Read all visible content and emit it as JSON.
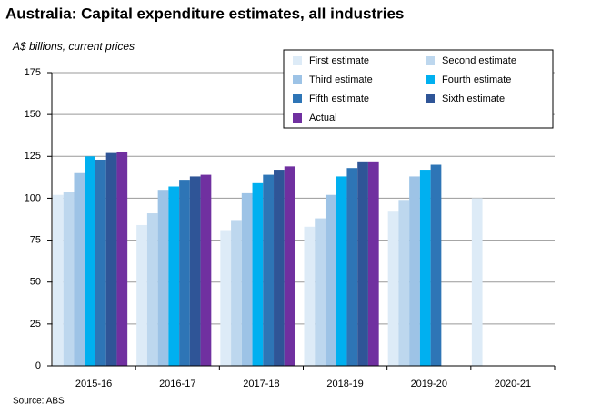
{
  "chart_data": {
    "type": "bar",
    "title": "Australia: Capital expenditure estimates, all industries",
    "subtitle": "A$ billions, current prices",
    "source": "Source: ABS",
    "categories": [
      "2015-16",
      "2016-17",
      "2017-18",
      "2018-19",
      "2019-20",
      "2020-21"
    ],
    "series": [
      {
        "name": "First estimate",
        "color": "#ddebf7",
        "values": [
          102,
          84,
          81,
          83,
          92,
          100
        ]
      },
      {
        "name": "Second estimate",
        "color": "#bdd7ee",
        "values": [
          104,
          91,
          87,
          88,
          99,
          null
        ]
      },
      {
        "name": "Third estimate",
        "color": "#9dc3e6",
        "values": [
          115,
          105,
          103,
          102,
          113,
          null
        ]
      },
      {
        "name": "Fourth estimate",
        "color": "#00b0f0",
        "values": [
          125,
          107,
          109,
          113,
          117,
          null
        ]
      },
      {
        "name": "Fifth estimate",
        "color": "#2e75b6",
        "values": [
          123,
          111,
          114,
          118,
          120,
          null
        ]
      },
      {
        "name": "Sixth estimate",
        "color": "#2f5597",
        "values": [
          127,
          113,
          117,
          122,
          null,
          null
        ]
      },
      {
        "name": "Actual",
        "color": "#7030a0",
        "values": [
          127.5,
          114,
          119,
          122,
          null,
          null
        ]
      }
    ],
    "ylim": [
      0,
      175
    ],
    "yticks": [
      0,
      25,
      50,
      75,
      100,
      125,
      150,
      175
    ],
    "grid": true
  }
}
